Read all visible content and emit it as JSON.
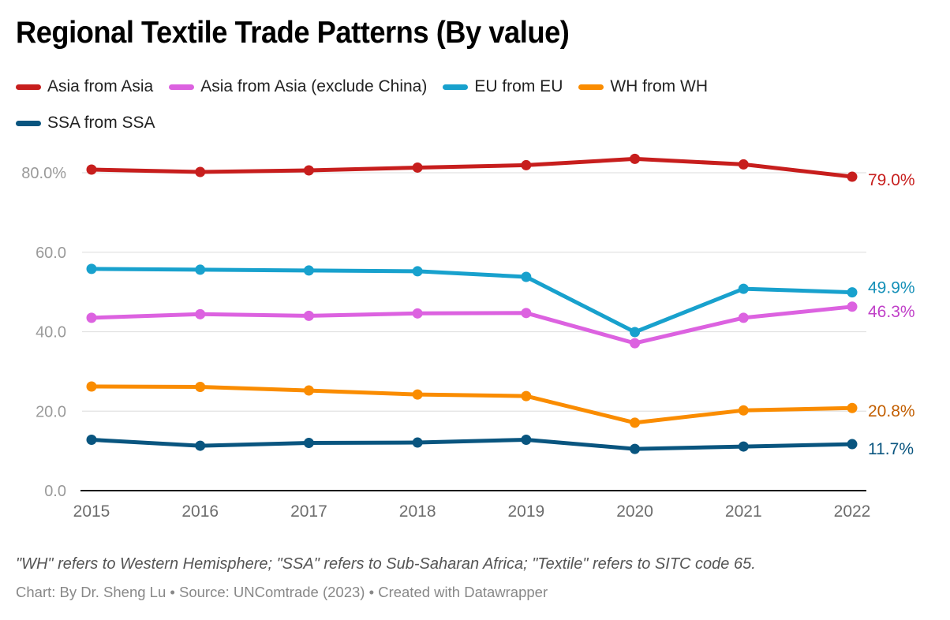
{
  "chart_data": {
    "type": "line",
    "title": "Regional Textile Trade Patterns (By value)",
    "xlabel": "",
    "ylabel": "",
    "x": [
      "2015",
      "2016",
      "2017",
      "2018",
      "2019",
      "2020",
      "2021",
      "2022"
    ],
    "ylim": [
      0,
      80
    ],
    "yticks": [
      0,
      20,
      40,
      60,
      80
    ],
    "ytick_labels": [
      "0.0",
      "20.0",
      "40.0",
      "60.0",
      "80.0%"
    ],
    "grid": true,
    "legend_position": "top-left",
    "series": [
      {
        "name": "Asia from Asia",
        "color": "#c71e1d",
        "label_color": "#c71e1d",
        "end_label": "79.0%",
        "values": [
          80.8,
          80.2,
          80.6,
          81.3,
          81.9,
          83.5,
          82.1,
          79.0
        ]
      },
      {
        "name": "Asia from Asia (exclude China)",
        "color": "#dc62e0",
        "label_color": "#c040c8",
        "end_label": "46.3%",
        "values": [
          43.5,
          44.4,
          44.0,
          44.6,
          44.7,
          37.1,
          43.5,
          46.3
        ]
      },
      {
        "name": "EU from EU",
        "color": "#18a1cd",
        "label_color": "#1590b8",
        "end_label": "49.9%",
        "values": [
          55.8,
          55.6,
          55.4,
          55.2,
          53.8,
          39.9,
          50.8,
          49.9
        ]
      },
      {
        "name": "WH from WH",
        "color": "#fa8c00",
        "label_color": "#c25e00",
        "end_label": "20.8%",
        "values": [
          26.2,
          26.1,
          25.2,
          24.2,
          23.8,
          17.1,
          20.2,
          20.8
        ]
      },
      {
        "name": "SSA from SSA",
        "color": "#09557f",
        "label_color": "#09557f",
        "end_label": "11.7%",
        "values": [
          12.8,
          11.3,
          12.0,
          12.1,
          12.8,
          10.5,
          11.1,
          11.7
        ]
      }
    ]
  },
  "notes": "\"WH\" refers to Western Hemisphere; \"SSA\" refers to Sub-Saharan Africa; \"Textile\" refers to SITC code 65.",
  "credit": "Chart: By Dr. Sheng Lu • Source: UNComtrade (2023) • Created with Datawrapper"
}
